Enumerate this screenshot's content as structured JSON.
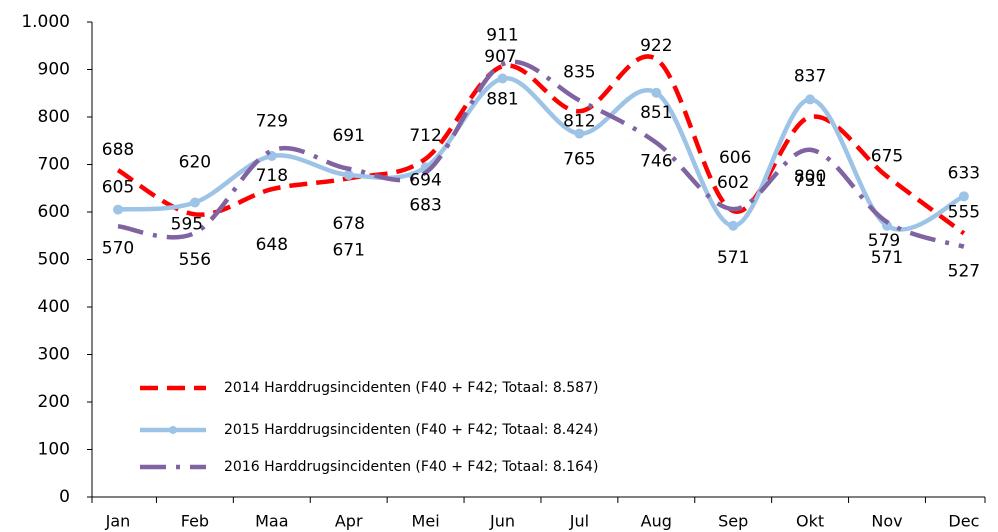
{
  "chart_data": {
    "type": "line",
    "categories": [
      "Jan",
      "Feb",
      "Maa",
      "Apr",
      "Mei",
      "Jun",
      "Jul",
      "Aug",
      "Sep",
      "Okt",
      "Nov",
      "Dec"
    ],
    "series": [
      {
        "name": "2014  Harddrugsincidenten (F40 + F42; Totaal: 8.587)",
        "color": "#ff0000",
        "linestyle": "dashed",
        "values": [
          688,
          595,
          648,
          671,
          712,
          907,
          812,
          922,
          602,
          800,
          675,
          555
        ]
      },
      {
        "name": "2015  Harddrugsincidenten (F40 + F42; Totaal: 8.424)",
        "color": "#9dc3e6",
        "linestyle": "solid",
        "marker": "circle",
        "values": [
          605,
          620,
          718,
          678,
          694,
          881,
          765,
          851,
          571,
          837,
          571,
          633
        ]
      },
      {
        "name": "2016  Harddrugsincidenten (F40 + F42; Totaal: 8.164)",
        "color": "#8064a2",
        "linestyle": "dashdot",
        "values": [
          570,
          556,
          729,
          691,
          683,
          911,
          835,
          746,
          606,
          731,
          579,
          527
        ]
      }
    ],
    "ylim": [
      0,
      1000
    ],
    "yticks": [
      0,
      100,
      200,
      300,
      400,
      500,
      600,
      700,
      800,
      900,
      {
        "value": 1000,
        "label": "1.000"
      }
    ],
    "smooth": true,
    "legend": "lower left"
  }
}
